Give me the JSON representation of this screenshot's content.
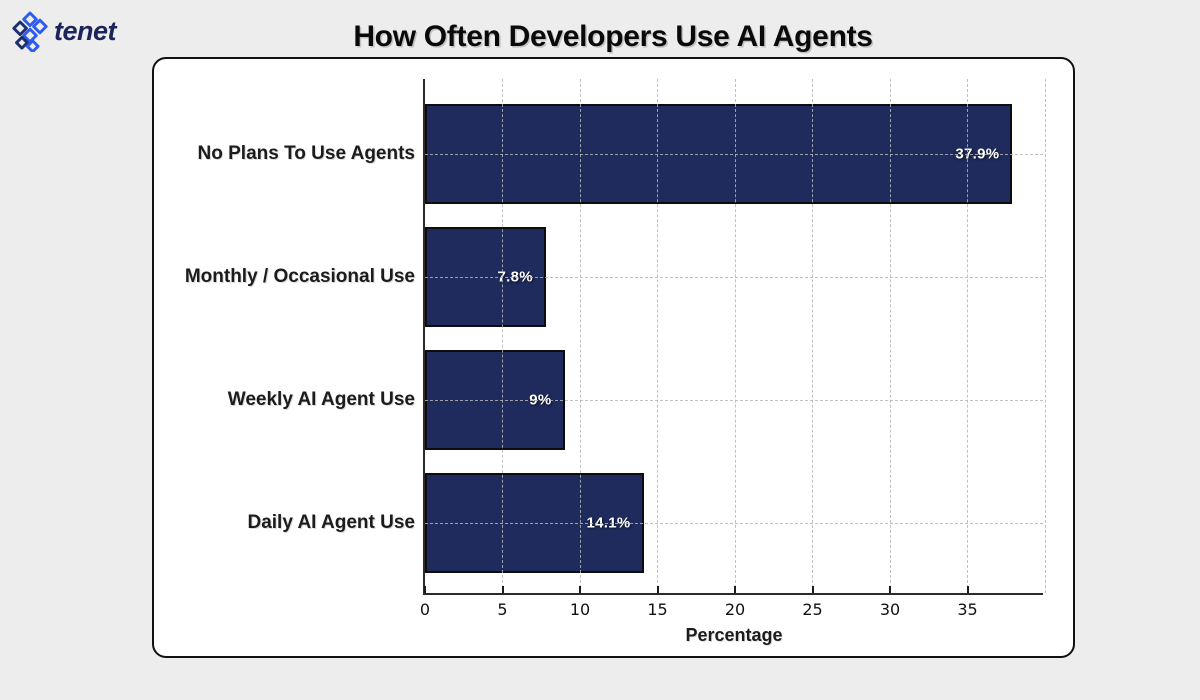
{
  "brand": {
    "name": "tenet"
  },
  "title": "How Often Developers Use AI Agents",
  "chart_data": {
    "type": "bar",
    "orientation": "horizontal",
    "title": "How Often Developers Use AI Agents",
    "categories": [
      "No Plans To Use Agents",
      "Monthly / Occasional Use",
      "Weekly AI Agent Use",
      "Daily AI Agent Use"
    ],
    "series": [
      {
        "name": "Percentage",
        "values": [
          37.9,
          7.8,
          9.0,
          14.1
        ]
      }
    ],
    "value_labels": [
      "37.9%",
      "7.8%",
      "9%",
      "14.1%"
    ],
    "xlabel": "Percentage",
    "ylabel": "",
    "xlim": [
      0,
      40
    ],
    "xticks": [
      0,
      5,
      10,
      15,
      20,
      25,
      30,
      35
    ],
    "gridlines_x": [
      5,
      10,
      15,
      20,
      25,
      30,
      35,
      40
    ],
    "grid": "dashed",
    "legend": "none",
    "colors": {
      "bar": "#1e2b5c",
      "bar_edge": "#0d0d0d",
      "value_label": "#ffffff",
      "grid": "#b6b6b6",
      "axis": "#2b2b2b",
      "plot_background": "#ffffff",
      "card_background": "#ffffff",
      "page_background": "#ededed",
      "logo_blue": "#2e5bf0",
      "logo_navy": "#1b2559"
    }
  }
}
